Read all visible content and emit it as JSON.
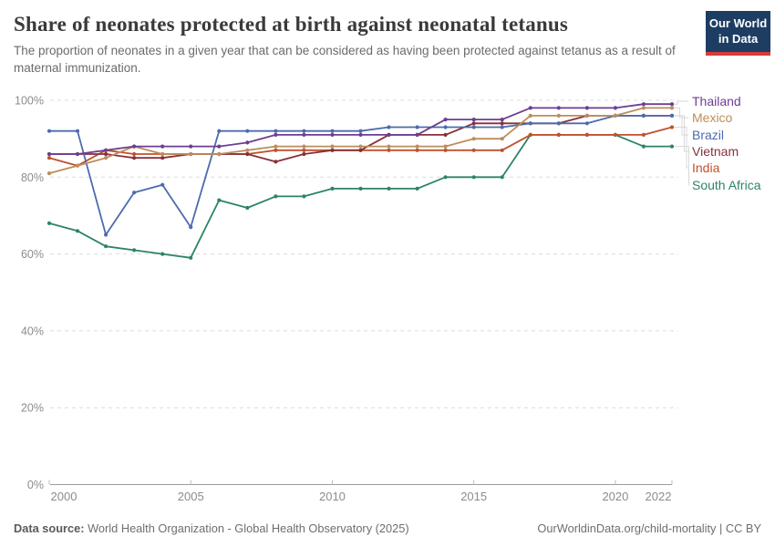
{
  "chart_data": {
    "type": "line",
    "title": "Share of neonates protected at birth against neonatal tetanus",
    "subtitle": "The proportion of neonates in a given year that can be considered as having been protected against tetanus as a result of maternal immunization.",
    "xlabel": "",
    "ylabel": "",
    "x": [
      2000,
      2001,
      2002,
      2003,
      2004,
      2005,
      2006,
      2007,
      2008,
      2009,
      2010,
      2011,
      2012,
      2013,
      2014,
      2015,
      2016,
      2017,
      2018,
      2019,
      2020,
      2021,
      2022
    ],
    "series": [
      {
        "name": "Thailand",
        "color": "#6D3E91",
        "values": [
          86,
          86,
          87,
          88,
          88,
          88,
          88,
          89,
          91,
          91,
          91,
          91,
          91,
          91,
          95,
          95,
          95,
          98,
          98,
          98,
          98,
          99,
          99
        ]
      },
      {
        "name": "Mexico",
        "color": "#BC8E5A",
        "values": [
          81,
          83,
          85,
          88,
          86,
          86,
          86,
          87,
          88,
          88,
          88,
          88,
          88,
          88,
          88,
          90,
          90,
          96,
          96,
          96,
          96,
          98,
          98
        ]
      },
      {
        "name": "Brazil",
        "color": "#4C6BAE",
        "values": [
          92,
          92,
          65,
          76,
          78,
          67,
          92,
          92,
          92,
          92,
          92,
          92,
          93,
          93,
          93,
          93,
          93,
          94,
          94,
          94,
          96,
          96,
          96
        ]
      },
      {
        "name": "Vietnam",
        "color": "#883039",
        "values": [
          86,
          86,
          86,
          85,
          85,
          86,
          86,
          86,
          84,
          86,
          87,
          87,
          91,
          91,
          91,
          94,
          94,
          94,
          94,
          96,
          96,
          96,
          96
        ]
      },
      {
        "name": "India",
        "color": "#C0512C",
        "values": [
          85,
          83,
          87,
          86,
          86,
          86,
          86,
          86,
          87,
          87,
          87,
          87,
          87,
          87,
          87,
          87,
          87,
          91,
          91,
          91,
          91,
          91,
          93
        ]
      },
      {
        "name": "South Africa",
        "color": "#2C8465",
        "values": [
          68,
          66,
          62,
          61,
          60,
          59,
          74,
          72,
          75,
          75,
          77,
          77,
          77,
          77,
          80,
          80,
          80,
          91,
          91,
          91,
          91,
          88,
          88
        ]
      }
    ],
    "ylim": [
      0,
      100
    ],
    "yticks": [
      "0%",
      "20%",
      "40%",
      "60%",
      "80%",
      "100%"
    ],
    "xticks": [
      2000,
      2005,
      2010,
      2015,
      2020,
      2022
    ],
    "grid": "horizontal-dashed",
    "legend_position": "right-edge-labels"
  },
  "header": {
    "logo": {
      "line1": "Our World",
      "line2": "in Data"
    }
  },
  "footer": {
    "source_label": "Data source:",
    "source_text": " World Health Organization - Global Health Observatory (2025)",
    "credit": "OurWorldinData.org/child-mortality | CC BY"
  },
  "colors": {
    "grid": "#dcdcdc",
    "axis": "#9c9c9c",
    "tick_label": "#8c8c8c",
    "connector": "#d8d8d8"
  }
}
